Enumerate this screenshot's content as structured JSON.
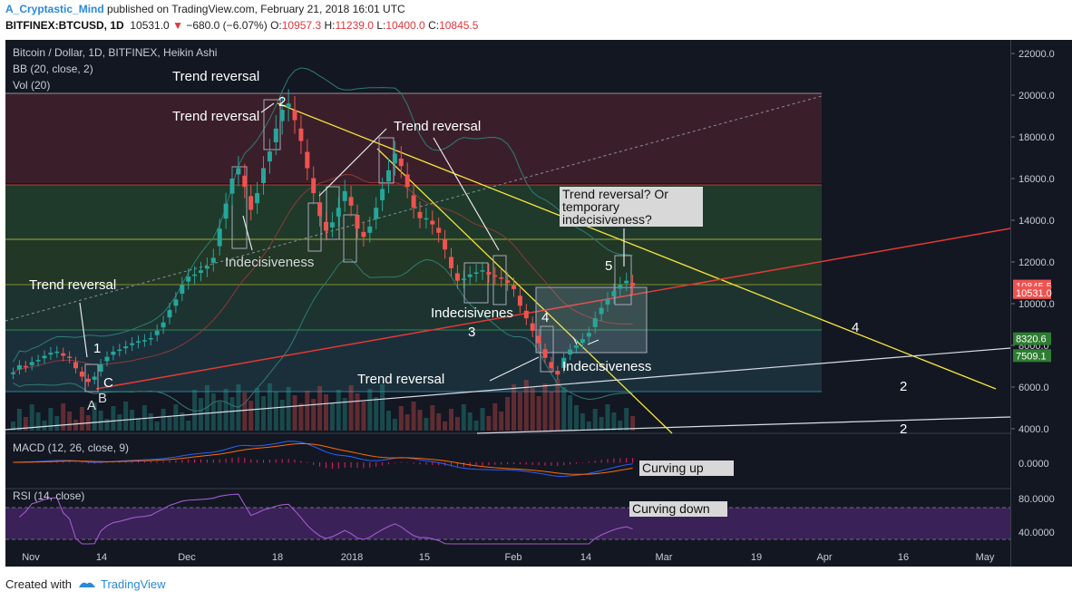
{
  "header": {
    "author": "A_Cryptastic_Mind",
    "published": "published on TradingView.com, February 21, 2018 16:01 UTC",
    "symbol": "BITFINEX:BTCUSD, 1D",
    "price": "10531.0",
    "change": "−680.0 (−6.07%)",
    "o_label": "O:",
    "o_val": "10957.3",
    "h_label": "H:",
    "h_val": "11239.0",
    "l_label": "L:",
    "l_val": "10400.0",
    "c_label": "C:",
    "c_val": "10845.5"
  },
  "legend": {
    "title": "Bitcoin / Dollar, 1D, BITFINEX, Heikin Ashi",
    "bb": "BB (20, close, 2)",
    "vol": "Vol (20)",
    "macd": "MACD (12, 26, close, 9)",
    "rsi": "RSI (14, close)"
  },
  "annotations": {
    "trend_reversal": "Trend reversal",
    "indecisiveness": "Indecisiveness",
    "indecisiveness_cut": "Indecisivenes",
    "question": [
      "Trend reversal? Or",
      "temporary",
      "indecisiveness?"
    ],
    "curving_up": "Curving up",
    "curving_down": "Curving down",
    "wave_labels": [
      "1",
      "2",
      "3",
      "4",
      "5",
      "A",
      "B",
      "C",
      "4",
      "2",
      "2"
    ]
  },
  "footer": {
    "created_with": "Created with",
    "brand": "TradingView"
  },
  "colors": {
    "up": "#26a69a",
    "down": "#ef5350",
    "background": "#131722",
    "trendline_yellow": "#f5e33a",
    "trendline_red": "#e53935",
    "rsi_band": "#4a2a6a",
    "macd_line": "#2962ff",
    "signal_line": "#ff6d00"
  },
  "chart_data": {
    "type": "candlestick",
    "title": "Bitcoin / Dollar, 1D, BITFINEX, Heikin Ashi",
    "price_axis_ticks": [
      "22000.0",
      "20000.0",
      "18000.0",
      "16000.0",
      "14000.0",
      "12000.0",
      "10000.0",
      "8000.0",
      "6000.0",
      "4000.0"
    ],
    "price_labels": [
      {
        "text": "10845.5",
        "value": 10845.5,
        "color": "#ef5350"
      },
      {
        "text": "10531.0",
        "value": 10531.0,
        "color": "#ef5350"
      },
      {
        "text": "8320.6",
        "value": 8320.6,
        "color": "#2e7d32"
      },
      {
        "text": "7509.1",
        "value": 7509.1,
        "color": "#2e7d32"
      }
    ],
    "x_ticks": [
      "Nov",
      "14",
      "Dec",
      "18",
      "2018",
      "15",
      "Feb",
      "14",
      "Mar",
      "19",
      "Apr",
      "16",
      "May"
    ],
    "macd_ticks": [
      "0.0000"
    ],
    "rsi_ticks": [
      "80.0000",
      "40.0000"
    ],
    "ylim": [
      4000,
      22500
    ],
    "closes": [
      6700,
      7050,
      6950,
      7200,
      7300,
      7500,
      7650,
      7700,
      7500,
      7400,
      6900,
      6500,
      6250,
      6500,
      7100,
      7450,
      7700,
      7800,
      7950,
      8100,
      8200,
      8250,
      8350,
      8700,
      9100,
      9700,
      10200,
      10900,
      11300,
      11400,
      11600,
      11800,
      12200,
      13600,
      14800,
      16000,
      16500,
      15600,
      14500,
      15300,
      16500,
      17300,
      18400,
      19300,
      19600,
      18800,
      17800,
      16500,
      15300,
      14200,
      13500,
      13900,
      14600,
      15400,
      14700,
      13600,
      13200,
      13700,
      14600,
      15500,
      16400,
      17200,
      16600,
      15600,
      14600,
      14100,
      14100,
      13800,
      13400,
      12600,
      11700,
      11100,
      11200,
      11400,
      11500,
      11600,
      11400,
      11300,
      11200,
      11000,
      10700,
      9900,
      9300,
      8700,
      8100,
      7400,
      6900,
      6600,
      7400,
      7800,
      8000,
      8300,
      8600,
      9300,
      9800,
      10200,
      10600,
      10900,
      11100,
      10845
    ]
  }
}
